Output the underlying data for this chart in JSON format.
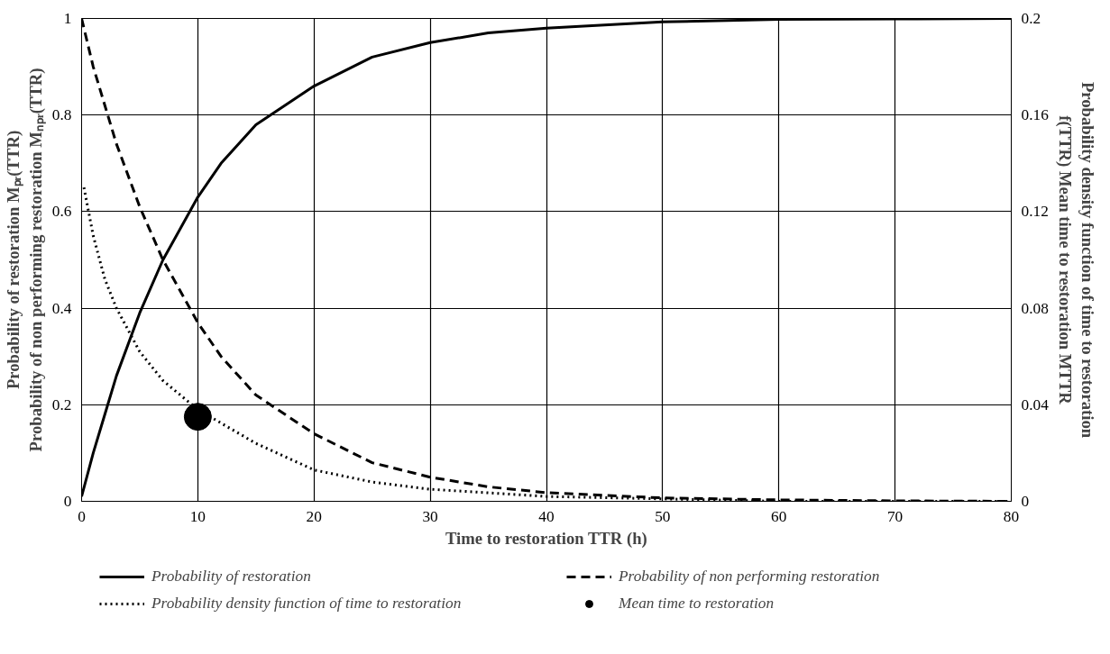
{
  "chart_data": {
    "type": "line",
    "xlabel": "Time to restoration TTR (h)",
    "ylabel": "Probability of restoration Mₚᵣ(TTR)\nProbability of non performing restoration Mₙₚᵣ(TTR)",
    "y2label": "Probability density function of time to restoration\nf(TTR) Mean time to restoration MTTR",
    "xlim": [
      0,
      80
    ],
    "xticks": [
      0,
      10,
      20,
      30,
      40,
      50,
      60,
      70,
      80
    ],
    "ylim": [
      0,
      1
    ],
    "yticks": [
      0,
      0.2,
      0.4,
      0.6,
      0.8,
      1
    ],
    "y2lim": [
      0,
      0.2
    ],
    "y2ticks": [
      0,
      0.04,
      0.08,
      0.12,
      0.16,
      0.2
    ],
    "grid": true,
    "legend": "bottom",
    "series": [
      {
        "name": "Probability of restoration",
        "color": "#000000",
        "line_style": "solid",
        "x": [
          0,
          1,
          2,
          3,
          5,
          7,
          10,
          12,
          15,
          20,
          25,
          30,
          35,
          40,
          50,
          60,
          70,
          80
        ],
        "values": [
          0.01,
          0.1,
          0.18,
          0.26,
          0.39,
          0.5,
          0.63,
          0.7,
          0.78,
          0.86,
          0.92,
          0.95,
          0.97,
          0.98,
          0.993,
          0.998,
          0.999,
          1
        ]
      },
      {
        "name": "Probability of non performing restoration",
        "color": "#000000",
        "line_style": "dashed",
        "x": [
          0,
          1,
          2,
          3,
          5,
          7,
          10,
          12,
          15,
          20,
          25,
          30,
          35,
          40,
          50,
          60,
          70,
          80
        ],
        "values": [
          1,
          0.9,
          0.82,
          0.74,
          0.61,
          0.5,
          0.37,
          0.3,
          0.22,
          0.14,
          0.08,
          0.05,
          0.03,
          0.018,
          0.007,
          0.003,
          0.001,
          0
        ]
      },
      {
        "name": "Probability density function of time to restoration",
        "color": "#000000",
        "line_style": "dotted",
        "axis": "y2",
        "x": [
          0.2,
          1,
          2,
          3,
          5,
          7,
          10,
          15,
          20,
          25,
          30,
          40,
          50,
          60,
          80
        ],
        "values": [
          0.13,
          0.11,
          0.092,
          0.08,
          0.062,
          0.05,
          0.038,
          0.024,
          0.013,
          0.008,
          0.005,
          0.002,
          0.001,
          0,
          0
        ]
      },
      {
        "name": "Mean time to restoration",
        "color": "#000000",
        "type": "scatter",
        "marker": "circle",
        "axis": "y2",
        "x": [
          10
        ],
        "values": [
          0.035
        ]
      }
    ]
  }
}
